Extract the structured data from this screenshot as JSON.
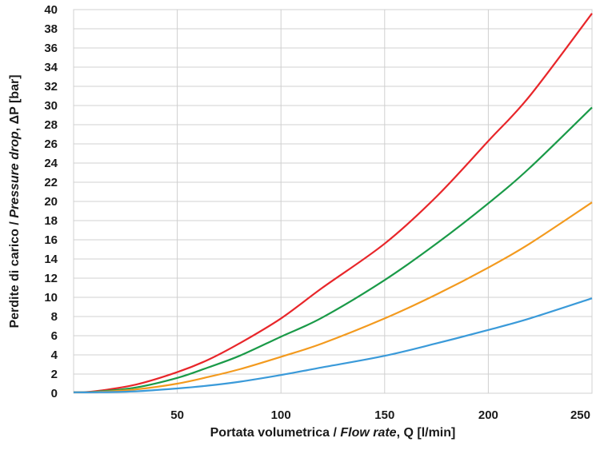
{
  "chart_data": {
    "type": "line",
    "xlabel": {
      "prefix": "Portata volumetrica / ",
      "italic": "Flow rate",
      "suffix": ", Q [l/min]"
    },
    "ylabel": {
      "prefix": "Perdite di carico / ",
      "italic": "Pressure drop",
      "suffix": ", ΔP [bar]"
    },
    "xlim": [
      0,
      250
    ],
    "ylim": [
      0,
      40
    ],
    "x_ticks": [
      "50",
      "100",
      "150",
      "200",
      "250"
    ],
    "y_ticks": [
      "0",
      "2",
      "4",
      "6",
      "8",
      "10",
      "12",
      "14",
      "16",
      "18",
      "20",
      "22",
      "24",
      "26",
      "28",
      "30",
      "32",
      "34",
      "36",
      "38",
      "40"
    ],
    "grid": true,
    "series": [
      {
        "color": "#e8262a",
        "x": [
          0,
          10,
          30,
          50,
          65,
          80,
          100,
          120,
          150,
          175,
          200,
          220,
          250
        ],
        "y": [
          0.1,
          0.2,
          0.9,
          2.2,
          3.5,
          5.2,
          7.8,
          11,
          15.6,
          20.5,
          26.3,
          31,
          39.6
        ]
      },
      {
        "color": "#1a9a48",
        "x": [
          0,
          10,
          30,
          50,
          65,
          80,
          100,
          120,
          150,
          175,
          200,
          220,
          250
        ],
        "y": [
          0.1,
          0.15,
          0.6,
          1.6,
          2.7,
          3.9,
          5.9,
          7.9,
          11.8,
          15.6,
          19.8,
          23.5,
          29.8
        ]
      },
      {
        "color": "#f39a1e",
        "x": [
          0,
          10,
          30,
          50,
          65,
          80,
          100,
          120,
          150,
          175,
          200,
          220,
          250
        ],
        "y": [
          0.1,
          0.12,
          0.4,
          1.0,
          1.7,
          2.5,
          3.8,
          5.2,
          7.8,
          10.3,
          13.1,
          15.6,
          19.9
        ]
      },
      {
        "color": "#3a9ad9",
        "x": [
          0,
          10,
          30,
          50,
          65,
          80,
          100,
          120,
          150,
          175,
          200,
          220,
          250
        ],
        "y": [
          0.1,
          0.1,
          0.2,
          0.5,
          0.8,
          1.2,
          1.9,
          2.7,
          3.9,
          5.2,
          6.6,
          7.8,
          9.9
        ]
      }
    ]
  }
}
